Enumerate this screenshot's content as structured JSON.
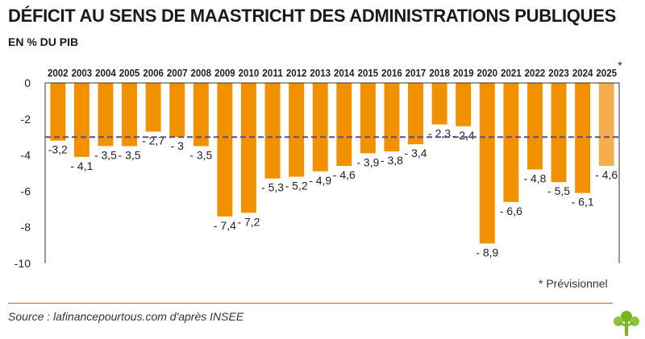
{
  "title": "DÉFICIT AU SENS DE MAASTRICHT DES ADMINISTRATIONS PUBLIQUES",
  "subtitle": "EN % DU PIB",
  "footnote": "*  Prévisionnel",
  "source": "Source : lafinancepourtous.com d'après INSEE",
  "colors": {
    "bar": "#f29100",
    "bar_forecast": "#f6ad4e",
    "reference_line": "#5b4f86",
    "axis": "#333333"
  },
  "chart_data": {
    "type": "bar",
    "categories": [
      "2002",
      "2003",
      "2004",
      "2005",
      "2006",
      "2007",
      "2008",
      "2009",
      "2010",
      "2011",
      "2012",
      "2013",
      "2014",
      "2015",
      "2016",
      "2017",
      "2018",
      "2019",
      "2020",
      "2021",
      "2022",
      "2023",
      "2024",
      "2025"
    ],
    "values": [
      -3.2,
      -4.1,
      -3.5,
      -3.5,
      -2.7,
      -3,
      -3.5,
      -7.4,
      -7.2,
      -5.3,
      -5.2,
      -4.9,
      -4.6,
      -3.9,
      -3.8,
      -3.4,
      -2.3,
      -2.4,
      -8.9,
      -6.6,
      -4.8,
      -5.5,
      -6.1,
      -4.6
    ],
    "value_labels": [
      "-3,2",
      "- 4,1",
      "- 3,5",
      "- 3,5",
      "- 2,7",
      "- 3",
      "- 3,5",
      "- 7,4",
      "- 7,2",
      "- 5,3",
      "- 5,2",
      "- 4,9",
      "- 4,6",
      "- 3,9",
      "- 3,8",
      "- 3,4",
      "- 2,3",
      "- 2,4",
      "- 8,9",
      "- 6,6",
      "- 4,8",
      "- 5,5",
      "- 6,1",
      "- 4,6"
    ],
    "forecast_marker": "*",
    "forecast_category": "2025",
    "yticks": [
      0,
      -2,
      -4,
      -6,
      -8,
      -10
    ],
    "ytick_labels": [
      "0",
      "-2",
      "-4",
      "-6",
      "-8",
      "-10"
    ],
    "ylim": [
      -10,
      0
    ],
    "reference_line": -3,
    "xlabel": "",
    "ylabel": ""
  }
}
